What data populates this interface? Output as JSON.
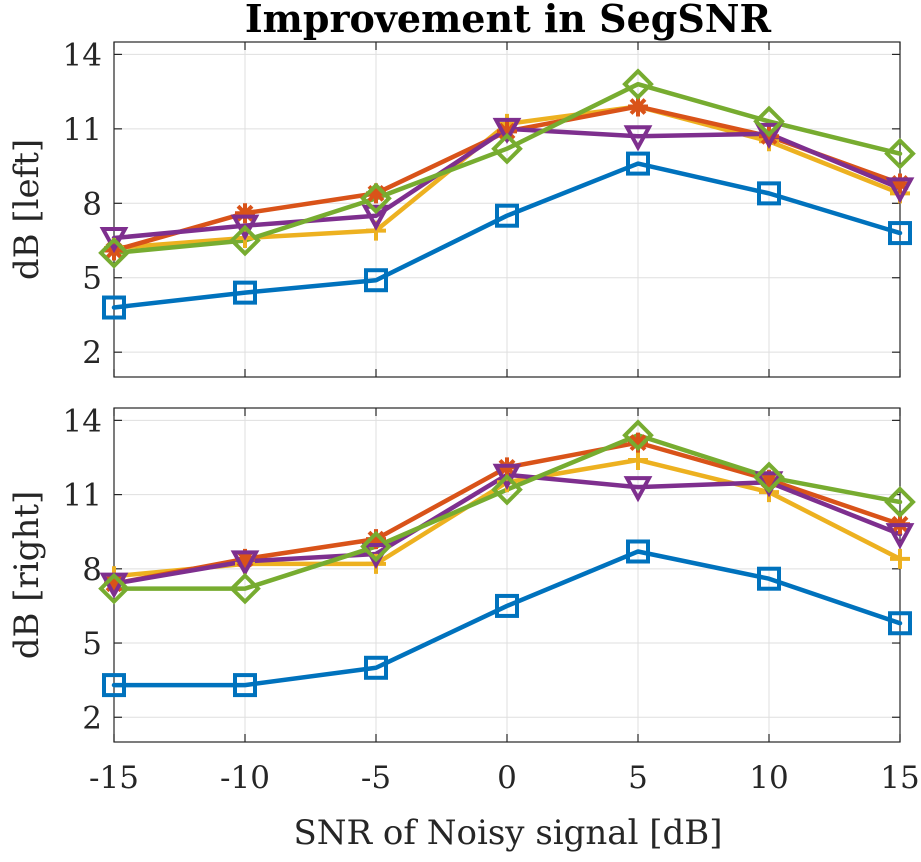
{
  "chart_data": {
    "type": "line",
    "title": "Improvement in SegSNR",
    "xlabel": "SNR of Noisy signal [dB]",
    "x": [
      -15,
      -10,
      -5,
      0,
      5,
      10,
      15
    ],
    "xlim": [
      -15,
      15
    ],
    "x_ticks": [
      "-15",
      "-10",
      "-5",
      "0",
      "5",
      "10",
      "15"
    ],
    "colors": {
      "blue": "#0072BD",
      "orange": "#D95319",
      "yellow": "#EDB120",
      "purple": "#7E2F8E",
      "green": "#77AC30"
    },
    "panels": [
      {
        "id": "left",
        "ylabel": "dB [left]",
        "ylim": [
          1,
          14.5
        ],
        "y_ticks": [
          "2",
          "5",
          "8",
          "11",
          "14"
        ],
        "grid": true,
        "series": [
          {
            "name": "series-1",
            "color": "#0072BD",
            "marker": "square",
            "values": [
              3.8,
              4.4,
              4.9,
              7.5,
              9.6,
              8.4,
              6.8
            ]
          },
          {
            "name": "series-2",
            "color": "#EDB120",
            "marker": "plus",
            "values": [
              6.2,
              6.6,
              6.9,
              11.2,
              11.9,
              10.5,
              8.4
            ]
          },
          {
            "name": "series-3",
            "color": "#D95319",
            "marker": "asterisk",
            "values": [
              6.1,
              7.6,
              8.4,
              10.9,
              11.9,
              10.7,
              8.8
            ]
          },
          {
            "name": "series-4",
            "color": "#7E2F8E",
            "marker": "triangle-down",
            "values": [
              6.6,
              7.1,
              7.5,
              11.0,
              10.7,
              10.8,
              8.6
            ]
          },
          {
            "name": "series-5",
            "color": "#77AC30",
            "marker": "diamond",
            "values": [
              6.0,
              6.5,
              8.2,
              10.2,
              12.8,
              11.3,
              10.0
            ]
          }
        ]
      },
      {
        "id": "right",
        "ylabel": "dB [right]",
        "ylim": [
          1,
          14.5
        ],
        "y_ticks": [
          "2",
          "5",
          "8",
          "11",
          "14"
        ],
        "grid": true,
        "series": [
          {
            "name": "series-1",
            "color": "#0072BD",
            "marker": "square",
            "values": [
              3.3,
              3.3,
              4.0,
              6.5,
              8.7,
              7.6,
              5.8
            ]
          },
          {
            "name": "series-2",
            "color": "#EDB120",
            "marker": "plus",
            "values": [
              7.7,
              8.2,
              8.2,
              11.5,
              12.4,
              11.1,
              8.4
            ]
          },
          {
            "name": "series-3",
            "color": "#D95319",
            "marker": "asterisk",
            "values": [
              7.4,
              8.4,
              9.2,
              12.1,
              13.1,
              11.6,
              9.8
            ]
          },
          {
            "name": "series-4",
            "color": "#7E2F8E",
            "marker": "triangle-down",
            "values": [
              7.4,
              8.3,
              8.6,
              11.8,
              11.3,
              11.5,
              9.4
            ]
          },
          {
            "name": "series-5",
            "color": "#77AC30",
            "marker": "diamond",
            "values": [
              7.2,
              7.2,
              8.9,
              11.2,
              13.4,
              11.7,
              10.7
            ]
          }
        ]
      }
    ]
  }
}
